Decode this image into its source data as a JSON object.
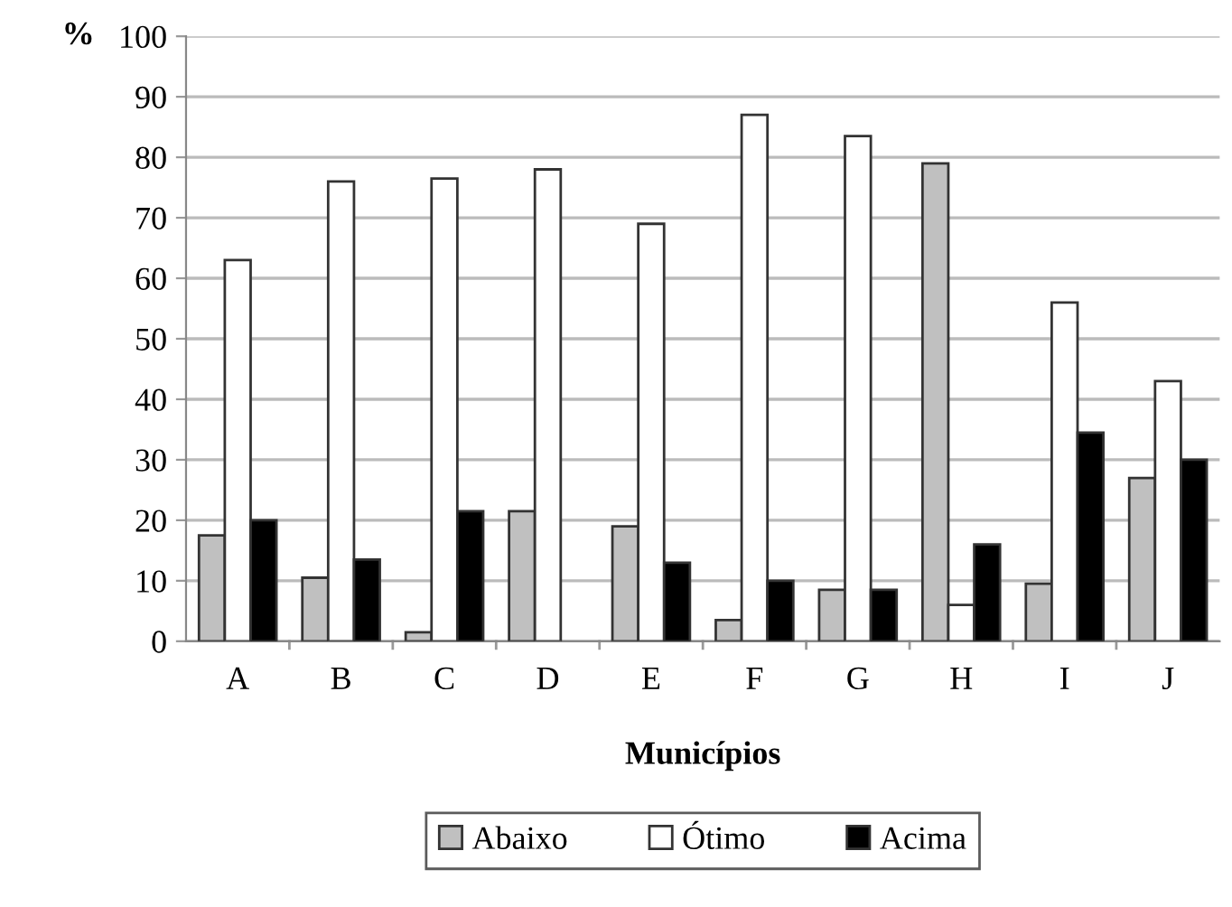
{
  "chart_data": {
    "type": "bar",
    "ylabel": "%",
    "xlabel": "Municípios",
    "categories": [
      "A",
      "B",
      "C",
      "D",
      "E",
      "F",
      "G",
      "H",
      "I",
      "J"
    ],
    "series": [
      {
        "name": "Abaixo",
        "color": "#c0c0c0",
        "values": [
          17.5,
          10.5,
          1.5,
          21.5,
          19,
          3.5,
          8.5,
          79,
          9.5,
          27
        ]
      },
      {
        "name": "Ótimo",
        "color": "#ffffff",
        "values": [
          63,
          76,
          76.5,
          78,
          69,
          87,
          83.5,
          6,
          56,
          43
        ]
      },
      {
        "name": "Acima",
        "color": "#000000",
        "values": [
          20,
          13.5,
          21.5,
          null,
          13,
          10,
          8.5,
          16,
          34.5,
          30
        ]
      }
    ],
    "ylim": [
      0,
      100
    ],
    "yticks": [
      0,
      10,
      20,
      30,
      40,
      50,
      60,
      70,
      80,
      90,
      100
    ],
    "grid": "y",
    "legend": "bottom"
  }
}
